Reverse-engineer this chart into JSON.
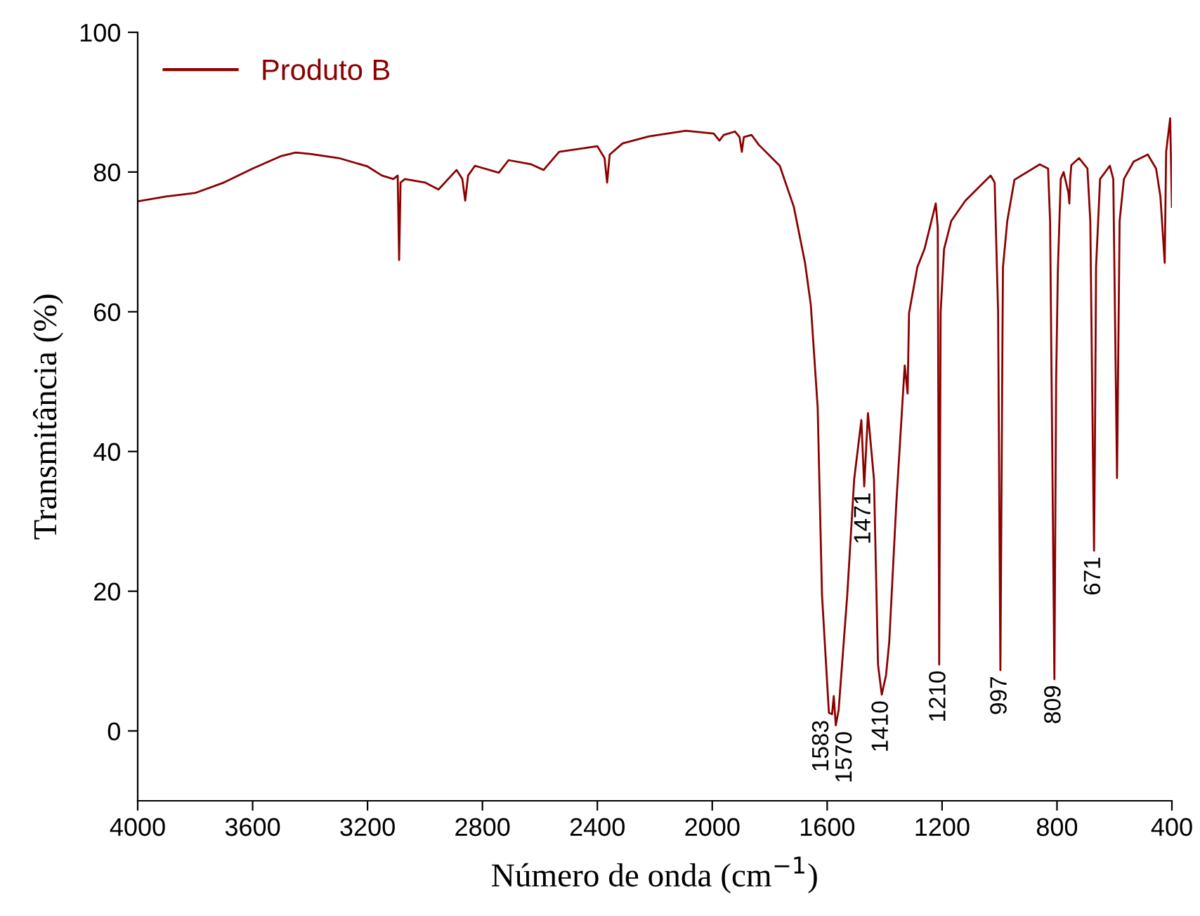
{
  "chart_data": {
    "type": "line",
    "xlabel": "Número de onda (cm$^{−1}$)",
    "ylabel": "Transmitância (%)",
    "xlim": [
      4000,
      400
    ],
    "xticks": [
      4000,
      3600,
      3200,
      2800,
      2400,
      2000,
      1600,
      1200,
      800,
      400
    ],
    "ylim": [
      -10,
      100
    ],
    "yticks": [
      0,
      20,
      40,
      60,
      80,
      100
    ],
    "grid": false,
    "legend": "top left",
    "marker": "none",
    "line_style": "solid",
    "series": [
      {
        "name": "Produto B",
        "color": "#8b0000",
        "x": [
          4000,
          3900,
          3800,
          3700,
          3600,
          3500,
          3450,
          3400,
          3300,
          3200,
          3150,
          3110,
          3095,
          3090,
          3085,
          3070,
          3000,
          2953,
          2890,
          2870,
          2860,
          2850,
          2826,
          2743,
          2709,
          2630,
          2587,
          2533,
          2400,
          2375,
          2366,
          2357,
          2312,
          2220,
          2092,
          1995,
          1975,
          1960,
          1921,
          1905,
          1897,
          1890,
          1863,
          1838,
          1765,
          1716,
          1677,
          1657,
          1633,
          1618,
          1594,
          1583,
          1577,
          1570,
          1560,
          1530,
          1506,
          1481,
          1471,
          1458,
          1437,
          1423,
          1410,
          1395,
          1384,
          1359,
          1335,
          1330,
          1320,
          1315,
          1286,
          1261,
          1222,
          1215,
          1210,
          1205,
          1193,
          1168,
          1119,
          1031,
          1017,
          1005,
          997,
          990,
          988,
          973,
          948,
          860,
          831,
          824,
          809,
          803,
          797,
          787,
          777,
          760,
          757,
          754,
          750,
          723,
          694,
          684,
          675,
          671,
          668,
          664,
          650,
          616,
          604,
          591,
          582,
          567,
          533,
          484,
          455,
          440,
          425,
          420,
          406,
          400
        ],
        "values": [
          75.8,
          76.5,
          77,
          78.5,
          80.5,
          82.3,
          82.8,
          82.6,
          82,
          80.8,
          79.5,
          79,
          79.5,
          67.4,
          78.5,
          79,
          78.5,
          77.5,
          80.3,
          79,
          75.9,
          79.5,
          80.9,
          79.9,
          81.7,
          81.1,
          80.3,
          82.9,
          83.7,
          82,
          78.5,
          82.5,
          84.1,
          85.1,
          85.9,
          85.5,
          84.5,
          85.3,
          85.8,
          85,
          82.9,
          85,
          85.3,
          83.9,
          80.9,
          75,
          67,
          61,
          46.3,
          19.5,
          2.6,
          2.4,
          5,
          0.8,
          3,
          19.5,
          36,
          44.5,
          35,
          45.5,
          36,
          9.5,
          5.2,
          8,
          12.7,
          32.8,
          49,
          52.3,
          48.3,
          59.8,
          66.4,
          69,
          75.5,
          72,
          9.5,
          60,
          69,
          73,
          75.9,
          79.5,
          78.5,
          60,
          8.7,
          55,
          66.4,
          73,
          78.9,
          81.1,
          80.5,
          73,
          7.4,
          50,
          65.8,
          79,
          80,
          77,
          75.5,
          79,
          81,
          82,
          80.5,
          73,
          40,
          25.8,
          40,
          66.4,
          79,
          80.9,
          79,
          36.2,
          73,
          79,
          81.5,
          82.5,
          80.5,
          76.5,
          67,
          82.9,
          87.7,
          75
        ]
      }
    ],
    "annotations": [
      {
        "text": "1583",
        "x": 1583,
        "y": 2.4
      },
      {
        "text": "1570",
        "x": 1570,
        "y": 0.8
      },
      {
        "text": "1471",
        "x": 1471,
        "y": 35
      },
      {
        "text": "1410",
        "x": 1410,
        "y": 5.2
      },
      {
        "text": "1210",
        "x": 1210,
        "y": 9.5
      },
      {
        "text": "997",
        "x": 997,
        "y": 8.7
      },
      {
        "text": "809",
        "x": 809,
        "y": 7.4
      },
      {
        "text": "671",
        "x": 671,
        "y": 25.8
      }
    ]
  }
}
